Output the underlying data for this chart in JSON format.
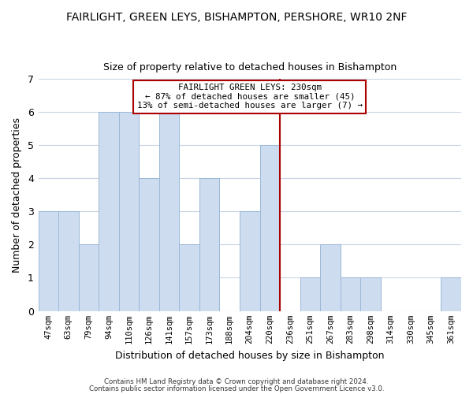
{
  "title": "FAIRLIGHT, GREEN LEYS, BISHAMPTON, PERSHORE, WR10 2NF",
  "subtitle": "Size of property relative to detached houses in Bishampton",
  "xlabel": "Distribution of detached houses by size in Bishampton",
  "ylabel": "Number of detached properties",
  "bar_labels": [
    "47sqm",
    "63sqm",
    "79sqm",
    "94sqm",
    "110sqm",
    "126sqm",
    "141sqm",
    "157sqm",
    "173sqm",
    "188sqm",
    "204sqm",
    "220sqm",
    "236sqm",
    "251sqm",
    "267sqm",
    "283sqm",
    "298sqm",
    "314sqm",
    "330sqm",
    "345sqm",
    "361sqm"
  ],
  "bar_heights": [
    3,
    3,
    2,
    6,
    6,
    4,
    6,
    2,
    4,
    0,
    3,
    5,
    0,
    1,
    2,
    1,
    1,
    0,
    0,
    0,
    1
  ],
  "bar_color": "#cddcef",
  "bar_edge_color": "#9bb8d8",
  "marker_color": "#aa0000",
  "annotation_line1": "FAIRLIGHT GREEN LEYS: 230sqm",
  "annotation_line2": "← 87% of detached houses are smaller (45)",
  "annotation_line3": "13% of semi-detached houses are larger (7) →",
  "ylim": [
    0,
    7
  ],
  "yticks": [
    0,
    1,
    2,
    3,
    4,
    5,
    6,
    7
  ],
  "footer1": "Contains HM Land Registry data © Crown copyright and database right 2024.",
  "footer2": "Contains public sector information licensed under the Open Government Licence v3.0.",
  "background_color": "#ffffff",
  "grid_color": "#c8d4e4",
  "title_fontsize": 10,
  "subtitle_fontsize": 9
}
